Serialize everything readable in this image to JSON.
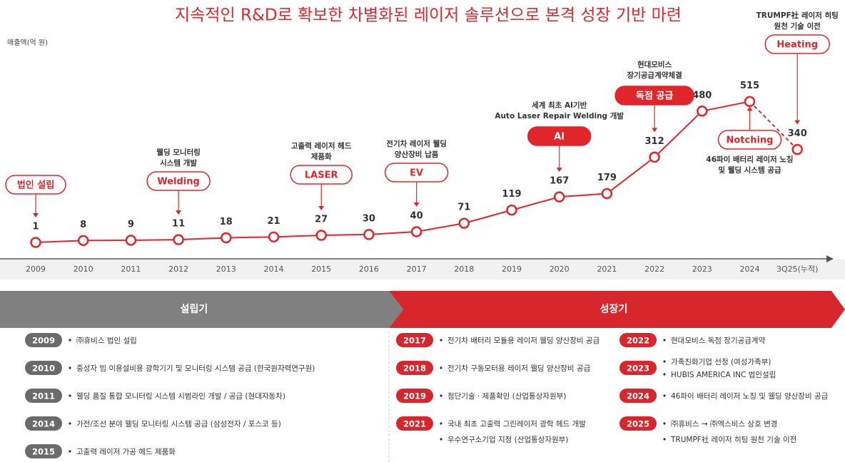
{
  "chart_data": {
    "type": "line",
    "title": "지속적인 R&D로 확보한 차별화된 레이저 솔루션으로 본격 성장 기반 마련",
    "y_label": "매출액(억 원)",
    "categories": [
      "2009",
      "2010",
      "2011",
      "2012",
      "2013",
      "2014",
      "2015",
      "2016",
      "2017",
      "2018",
      "2019",
      "2020",
      "2021",
      "2022",
      "2023",
      "2024",
      "3Q25(누적)"
    ],
    "series": [
      {
        "name": "매출액",
        "color": "#e0262b",
        "values": [
          1,
          8,
          9,
          11,
          18,
          21,
          27,
          30,
          40,
          71,
          119,
          167,
          179,
          312,
          480,
          515,
          340
        ]
      }
    ],
    "ylim": [
      0,
      600
    ],
    "annotations": [
      {
        "at": "2009",
        "badge": "법인 설립",
        "note": []
      },
      {
        "at": "2012",
        "badge": "Welding",
        "note": [
          "웰딩 모니터링",
          "시스템 개발"
        ]
      },
      {
        "at": "2015",
        "badge": "LASER",
        "note": [
          "고출력 레이저 헤드",
          "제품화"
        ]
      },
      {
        "at": "2017",
        "badge": "EV",
        "note": [
          "전기차 레이저 웰딩",
          "양산장비 납품"
        ]
      },
      {
        "at": "2020",
        "badge": "AI",
        "note": [
          "세계 최초 AI기반",
          "Auto Laser Repair Welding 개발"
        ]
      },
      {
        "at": "2022",
        "badge": "독점 공급",
        "note": [
          "현대모비스",
          "장기공급계약체결"
        ]
      },
      {
        "at": "2024",
        "badge": "Notching",
        "note": [
          "46파이 배터리 레이저 노칭",
          "및 웰딩 시스템 공급"
        ]
      },
      {
        "at": "3Q25(누적)",
        "badge": "Heating",
        "note": [
          "TRUMPF社 레이저 히팅",
          "원천 기술 이전"
        ]
      }
    ]
  },
  "phases": [
    "설립기",
    "성장기"
  ],
  "milestones": [
    [
      {
        "year": "2009",
        "items": [
          "㈜휴비스 법인 설립"
        ]
      },
      {
        "year": "2010",
        "items": [
          "중성자 빔 이용설비용 광학기기 및 모니터링 시스템 공급 (한국원자력연구원)"
        ]
      },
      {
        "year": "2011",
        "items": [
          "웰딩 품질 통합 모니터링 시스템 시범라인 개발 / 공급 (현대자동차)"
        ]
      },
      {
        "year": "2014",
        "items": [
          "가전/조선 분야 웰딩 모니터링 시스템 공급 (삼성전자 / 포스코 등)"
        ]
      },
      {
        "year": "2015",
        "items": [
          "고출력 레이저 가공 헤드 제품화"
        ]
      }
    ],
    [
      {
        "year": "2017",
        "items": [
          "전기차 배터리 모듈용 레이저 웰딩 양산장비 공급"
        ]
      },
      {
        "year": "2018",
        "items": [
          "전기차 구동모터용 레이저 웰딩 양산장비 공급"
        ]
      },
      {
        "year": "2019",
        "items": [
          "첨단기술 · 제품확인 (산업통상자원부)"
        ]
      },
      {
        "year": "2021",
        "items": [
          "국내 최초 고출력 그린레이저 광학 헤드 개발",
          "우수연구소기업 지정 (산업통상자원부)"
        ]
      }
    ],
    [
      {
        "year": "2022",
        "items": [
          "현대모비스 독점 장기공급계약"
        ]
      },
      {
        "year": "2023",
        "items": [
          "가족친화기업 선정 (여성가족부)",
          "HUBIS AMERICA INC 법인설립"
        ]
      },
      {
        "year": "2024",
        "items": [
          "46파이 배터리 레이저 노칭 및 웰딩 양산장비 공급"
        ]
      },
      {
        "year": "2025",
        "items": [
          "㈜휴비스 → ㈜엑스비스 상호 변경",
          "TRUMPF社 레이저 히팅 원천 기술 이전"
        ]
      }
    ]
  ]
}
